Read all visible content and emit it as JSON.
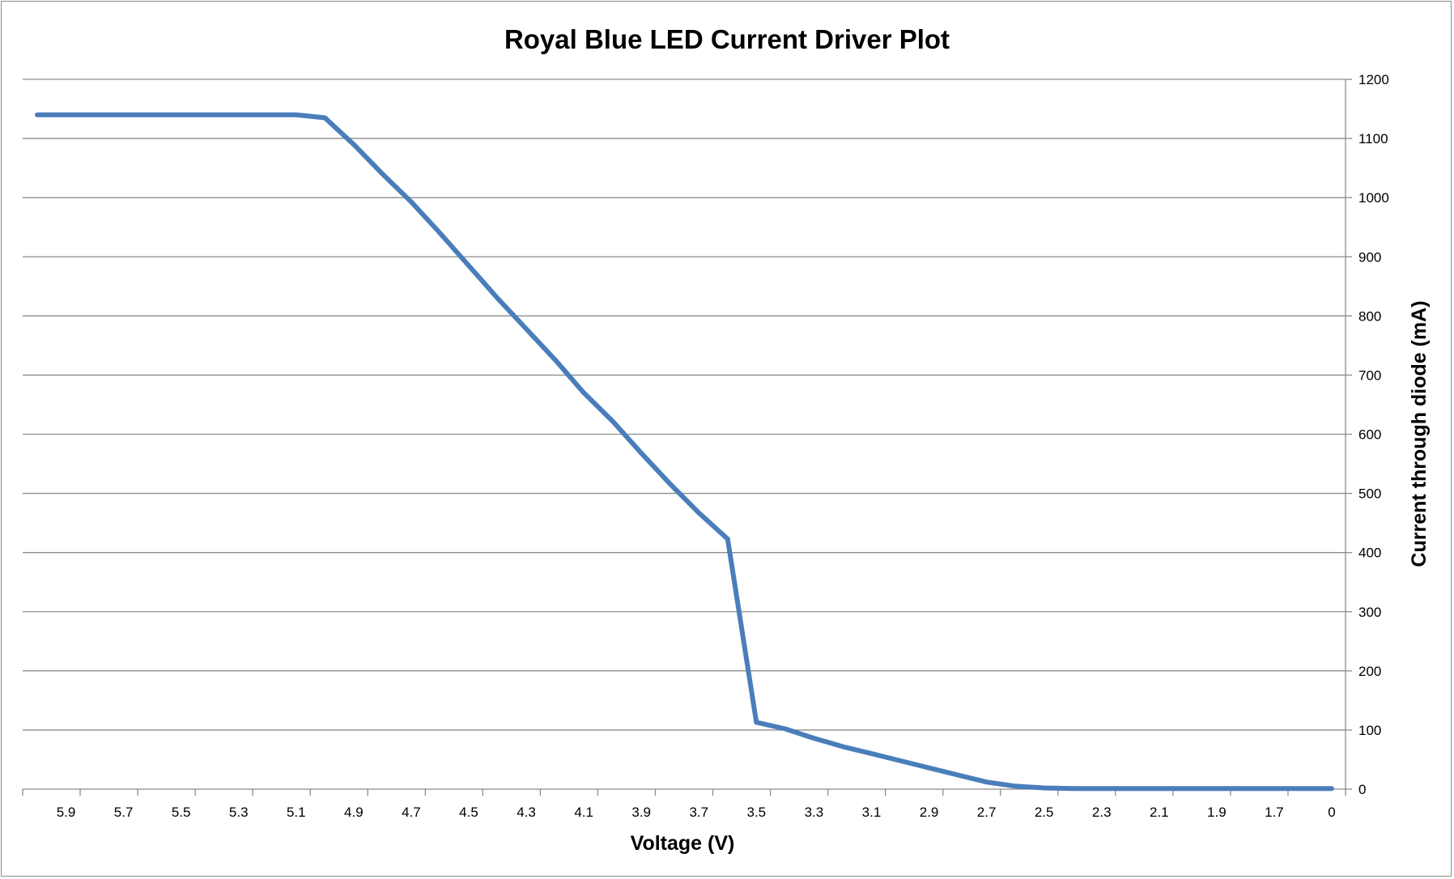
{
  "chart_data": {
    "type": "line",
    "title": "Royal Blue LED Current Driver Plot",
    "xlabel": "Voltage (V)",
    "ylabel": "Current through diode (mA)",
    "y_axis_position": "right",
    "ylim": [
      0,
      1200
    ],
    "y_ticks": [
      "0",
      "100",
      "200",
      "300",
      "400",
      "500",
      "600",
      "700",
      "800",
      "900",
      "1000",
      "1100",
      "1200"
    ],
    "x_tick_labels": [
      "5.9",
      "5.7",
      "5.5",
      "5.3",
      "5.1",
      "4.9",
      "4.7",
      "4.5",
      "4.3",
      "4.1",
      "3.9",
      "3.7",
      "3.5",
      "3.3",
      "3.1",
      "2.9",
      "2.7",
      "2.5",
      "2.3",
      "2.1",
      "1.9",
      "1.7",
      "0"
    ],
    "grid": true,
    "legend": "none",
    "categories": [
      "6.0",
      "5.9",
      "5.8",
      "5.7",
      "5.6",
      "5.5",
      "5.4",
      "5.3",
      "5.2",
      "5.1",
      "5.0",
      "4.9",
      "4.8",
      "4.7",
      "4.6",
      "4.5",
      "4.4",
      "4.3",
      "4.2",
      "4.1",
      "4.0",
      "3.9",
      "3.8",
      "3.7",
      "3.6",
      "3.5",
      "3.4",
      "3.3",
      "3.2",
      "3.1",
      "3.0",
      "2.9",
      "2.8",
      "2.7",
      "2.6",
      "2.5",
      "2.4",
      "2.3",
      "2.2",
      "2.1",
      "2.0",
      "1.9",
      "1.8",
      "1.7",
      "1.6",
      "0"
    ],
    "series": [
      {
        "color": "#4a7ebb",
        "values": [
          1140,
          1140,
          1140,
          1140,
          1140,
          1140,
          1140,
          1140,
          1140,
          1140,
          1135,
          1090,
          1040,
          993,
          940,
          885,
          830,
          778,
          726,
          670,
          622,
          568,
          516,
          467,
          423,
          113,
          102,
          86,
          72,
          60,
          48,
          36,
          24,
          12,
          5,
          2,
          1,
          1,
          1,
          1,
          1,
          1,
          1,
          1,
          1,
          1
        ]
      }
    ]
  }
}
